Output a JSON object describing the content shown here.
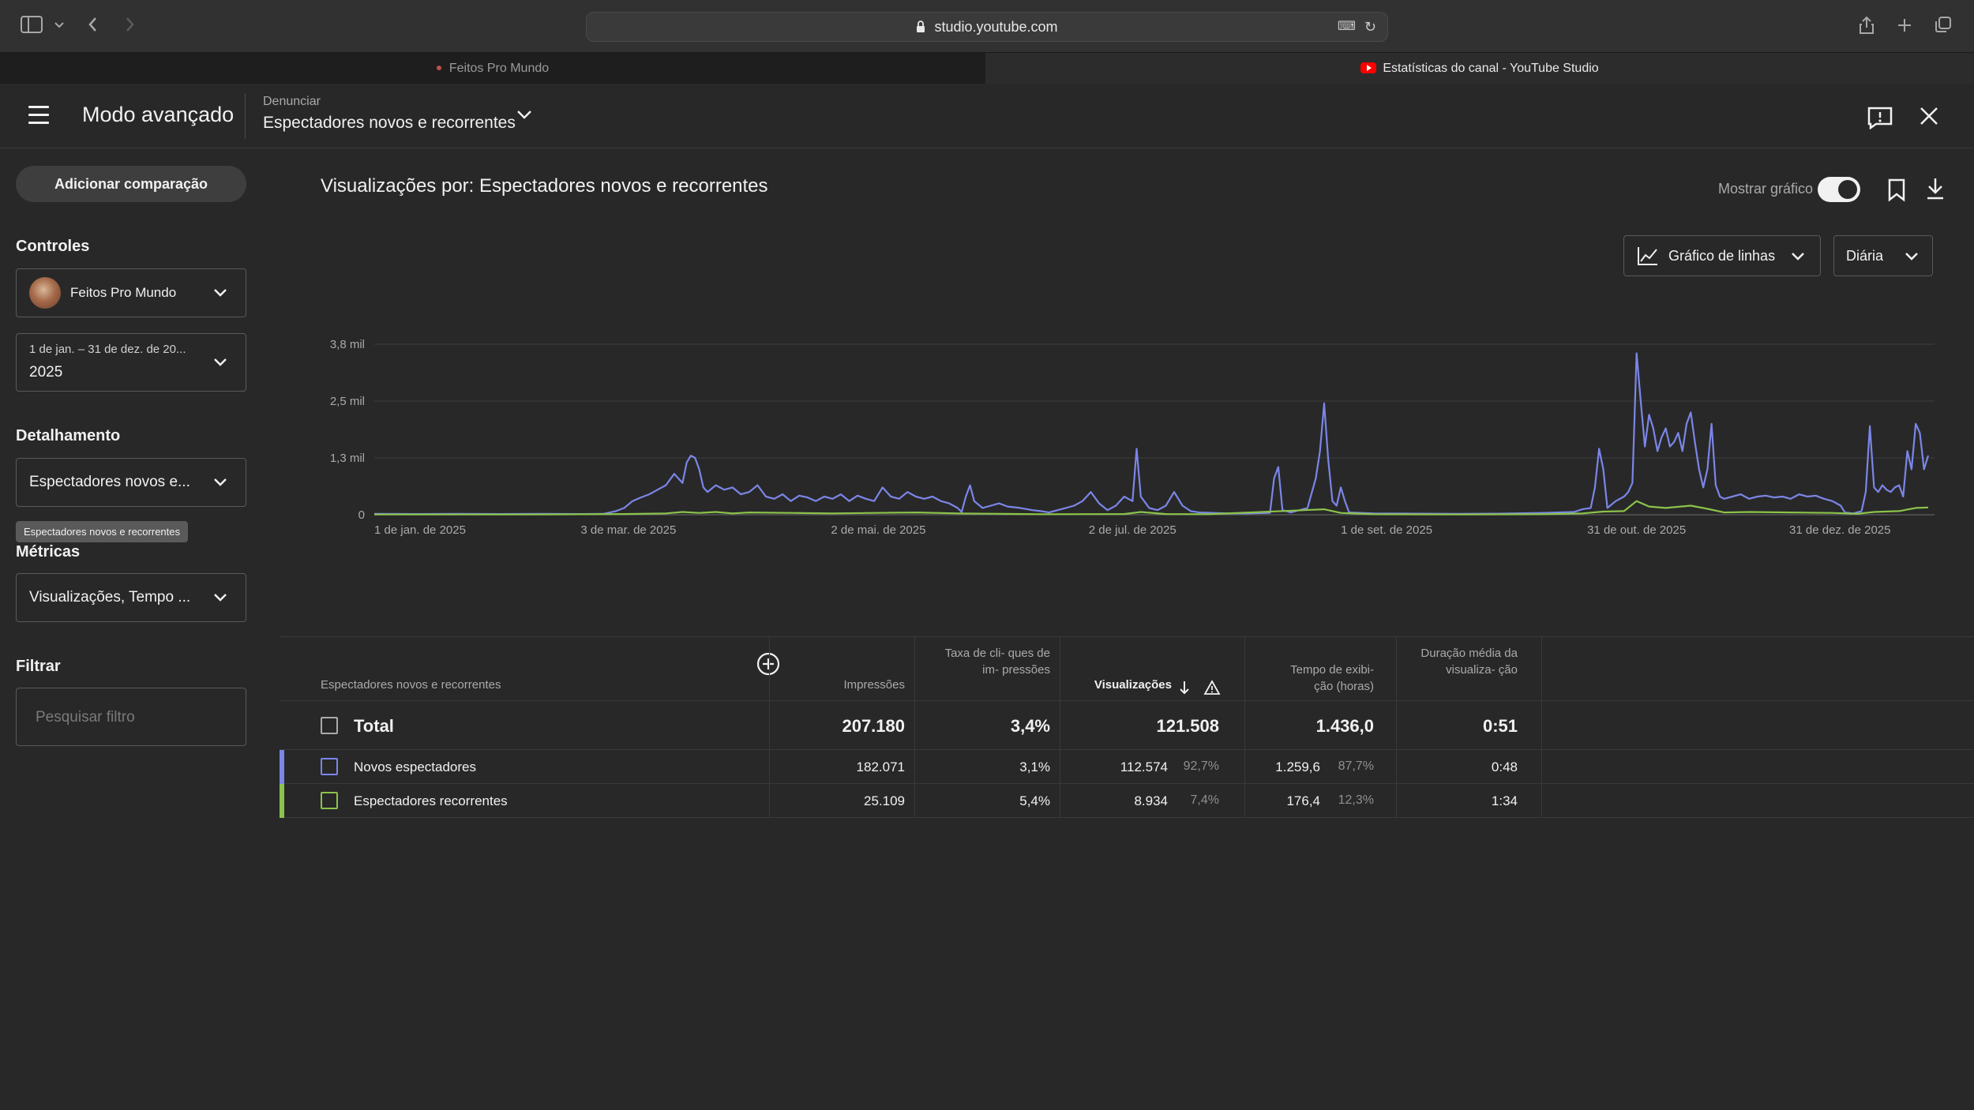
{
  "browser": {
    "url": "studio.youtube.com",
    "tabs": [
      {
        "label": "Feitos Pro Mundo"
      },
      {
        "label": "Estatísticas do canal - YouTube Studio"
      }
    ]
  },
  "header": {
    "title": "Modo avançado",
    "report_label": "Denunciar",
    "report_value": "Espectadores novos e recorrentes"
  },
  "sidebar": {
    "add_comparison": "Adicionar comparação",
    "controls_heading": "Controles",
    "channel_name": "Feitos Pro Mundo",
    "date_range_label": "1 de jan. – 31 de dez. de 20...",
    "date_range_value": "2025",
    "breakdown_heading": "Detalhamento",
    "breakdown_value": "Espectadores novos e...",
    "breakdown_tooltip": "Espectadores novos e recorrentes",
    "metrics_heading": "Métricas",
    "metrics_value": "Visualizações, Tempo ...",
    "filter_heading": "Filtrar",
    "filter_placeholder": "Pesquisar filtro"
  },
  "main": {
    "title": "Visualizações por: Espectadores novos e recorrentes",
    "show_chart_label": "Mostrar gráfico",
    "chart_type": "Gráfico de linhas",
    "granularity": "Diária"
  },
  "chart_data": {
    "type": "line",
    "y_tick_labels": [
      "0",
      "1,3 mil",
      "2,5 mil",
      "3,8 mil"
    ],
    "y_ticks": [
      0,
      1250,
      2500,
      3750
    ],
    "ylim": [
      0,
      3750
    ],
    "x_tick_labels": [
      "1 de jan. de 2025",
      "3 de mar. de 2025",
      "2 de mai. de 2025",
      "2 de jul. de 2025",
      "1 de set. de 2025",
      "31 de out. de 2025",
      "31 de dez. de 2025"
    ],
    "x_tick_days": [
      0,
      61,
      121,
      182,
      243,
      303,
      364
    ],
    "grid": true,
    "series": [
      {
        "name": "Novos espectadores",
        "color": "#7b86e8",
        "points": [
          [
            0,
            20
          ],
          [
            10,
            15
          ],
          [
            20,
            20
          ],
          [
            30,
            15
          ],
          [
            40,
            20
          ],
          [
            50,
            15
          ],
          [
            55,
            20
          ],
          [
            58,
            80
          ],
          [
            60,
            150
          ],
          [
            62,
            300
          ],
          [
            64,
            380
          ],
          [
            66,
            450
          ],
          [
            68,
            550
          ],
          [
            70,
            650
          ],
          [
            72,
            900
          ],
          [
            74,
            700
          ],
          [
            75,
            1150
          ],
          [
            76,
            1300
          ],
          [
            77,
            1250
          ],
          [
            78,
            1000
          ],
          [
            79,
            600
          ],
          [
            80,
            500
          ],
          [
            82,
            650
          ],
          [
            84,
            550
          ],
          [
            86,
            600
          ],
          [
            88,
            450
          ],
          [
            90,
            500
          ],
          [
            92,
            650
          ],
          [
            94,
            400
          ],
          [
            96,
            350
          ],
          [
            98,
            450
          ],
          [
            100,
            300
          ],
          [
            102,
            420
          ],
          [
            104,
            380
          ],
          [
            106,
            300
          ],
          [
            108,
            400
          ],
          [
            110,
            350
          ],
          [
            112,
            450
          ],
          [
            114,
            300
          ],
          [
            116,
            420
          ],
          [
            118,
            350
          ],
          [
            120,
            300
          ],
          [
            122,
            600
          ],
          [
            124,
            400
          ],
          [
            126,
            350
          ],
          [
            128,
            500
          ],
          [
            130,
            400
          ],
          [
            132,
            350
          ],
          [
            134,
            400
          ],
          [
            136,
            300
          ],
          [
            138,
            250
          ],
          [
            140,
            150
          ],
          [
            141,
            60
          ],
          [
            142,
            400
          ],
          [
            143,
            650
          ],
          [
            144,
            300
          ],
          [
            146,
            150
          ],
          [
            148,
            200
          ],
          [
            150,
            250
          ],
          [
            152,
            180
          ],
          [
            155,
            150
          ],
          [
            158,
            100
          ],
          [
            160,
            80
          ],
          [
            162,
            50
          ],
          [
            164,
            100
          ],
          [
            166,
            150
          ],
          [
            168,
            200
          ],
          [
            170,
            300
          ],
          [
            172,
            500
          ],
          [
            174,
            250
          ],
          [
            176,
            100
          ],
          [
            178,
            200
          ],
          [
            180,
            400
          ],
          [
            182,
            300
          ],
          [
            183,
            1450
          ],
          [
            184,
            400
          ],
          [
            186,
            150
          ],
          [
            188,
            100
          ],
          [
            190,
            200
          ],
          [
            192,
            500
          ],
          [
            194,
            200
          ],
          [
            196,
            80
          ],
          [
            198,
            50
          ],
          [
            205,
            30
          ],
          [
            210,
            30
          ],
          [
            215,
            40
          ],
          [
            216,
            800
          ],
          [
            217,
            1050
          ],
          [
            218,
            100
          ],
          [
            220,
            50
          ],
          [
            224,
            150
          ],
          [
            226,
            800
          ],
          [
            227,
            1400
          ],
          [
            228,
            2450
          ],
          [
            229,
            1200
          ],
          [
            230,
            300
          ],
          [
            231,
            200
          ],
          [
            232,
            600
          ],
          [
            233,
            300
          ],
          [
            234,
            50
          ],
          [
            240,
            30
          ],
          [
            250,
            25
          ],
          [
            260,
            20
          ],
          [
            270,
            25
          ],
          [
            280,
            40
          ],
          [
            288,
            60
          ],
          [
            290,
            120
          ],
          [
            292,
            150
          ],
          [
            293,
            600
          ],
          [
            294,
            1450
          ],
          [
            295,
            1000
          ],
          [
            296,
            150
          ],
          [
            298,
            300
          ],
          [
            300,
            400
          ],
          [
            301,
            500
          ],
          [
            302,
            700
          ],
          [
            303,
            3550
          ],
          [
            304,
            2500
          ],
          [
            305,
            1500
          ],
          [
            306,
            2200
          ],
          [
            307,
            1900
          ],
          [
            308,
            1400
          ],
          [
            309,
            1700
          ],
          [
            310,
            1900
          ],
          [
            311,
            1500
          ],
          [
            312,
            1600
          ],
          [
            313,
            1800
          ],
          [
            314,
            1400
          ],
          [
            315,
            2000
          ],
          [
            316,
            2250
          ],
          [
            317,
            1600
          ],
          [
            318,
            1000
          ],
          [
            319,
            600
          ],
          [
            320,
            1000
          ],
          [
            321,
            2000
          ],
          [
            322,
            650
          ],
          [
            323,
            400
          ],
          [
            324,
            350
          ],
          [
            326,
            400
          ],
          [
            328,
            450
          ],
          [
            330,
            350
          ],
          [
            332,
            400
          ],
          [
            334,
            420
          ],
          [
            336,
            380
          ],
          [
            338,
            400
          ],
          [
            340,
            350
          ],
          [
            342,
            450
          ],
          [
            344,
            400
          ],
          [
            346,
            420
          ],
          [
            348,
            350
          ],
          [
            350,
            300
          ],
          [
            352,
            200
          ],
          [
            353,
            50
          ],
          [
            355,
            30
          ],
          [
            357,
            80
          ],
          [
            358,
            500
          ],
          [
            359,
            1950
          ],
          [
            360,
            600
          ],
          [
            361,
            500
          ],
          [
            362,
            650
          ],
          [
            363,
            550
          ],
          [
            364,
            500
          ],
          [
            365,
            600
          ],
          [
            366,
            650
          ],
          [
            367,
            400
          ],
          [
            368,
            1400
          ],
          [
            369,
            1000
          ],
          [
            370,
            2000
          ],
          [
            371,
            1800
          ],
          [
            372,
            1000
          ],
          [
            373,
            1300
          ]
        ]
      },
      {
        "name": "Espectadores recorrentes",
        "color": "#8bc34a",
        "points": [
          [
            0,
            5
          ],
          [
            40,
            5
          ],
          [
            60,
            15
          ],
          [
            70,
            30
          ],
          [
            74,
            60
          ],
          [
            78,
            40
          ],
          [
            82,
            60
          ],
          [
            86,
            30
          ],
          [
            90,
            50
          ],
          [
            100,
            40
          ],
          [
            110,
            30
          ],
          [
            120,
            40
          ],
          [
            130,
            50
          ],
          [
            140,
            30
          ],
          [
            150,
            20
          ],
          [
            160,
            10
          ],
          [
            180,
            15
          ],
          [
            184,
            60
          ],
          [
            190,
            15
          ],
          [
            200,
            10
          ],
          [
            228,
            120
          ],
          [
            232,
            40
          ],
          [
            240,
            10
          ],
          [
            260,
            5
          ],
          [
            280,
            10
          ],
          [
            290,
            30
          ],
          [
            295,
            70
          ],
          [
            300,
            80
          ],
          [
            303,
            300
          ],
          [
            306,
            180
          ],
          [
            310,
            150
          ],
          [
            316,
            200
          ],
          [
            320,
            130
          ],
          [
            324,
            50
          ],
          [
            330,
            60
          ],
          [
            340,
            50
          ],
          [
            350,
            40
          ],
          [
            356,
            20
          ],
          [
            360,
            60
          ],
          [
            366,
            80
          ],
          [
            370,
            150
          ],
          [
            373,
            160
          ]
        ]
      }
    ]
  },
  "table": {
    "dimension_header": "Espectadores novos e recorrentes",
    "columns": [
      {
        "key": "impressions",
        "label": "Impressões"
      },
      {
        "key": "ctr",
        "label": "Taxa de cli- ques de im- pressões"
      },
      {
        "key": "views",
        "label": "Visualizações"
      },
      {
        "key": "watch_time",
        "label": "Tempo de exibi- ção (horas)"
      },
      {
        "key": "avg_duration",
        "label": "Duração média da visualiza- ção"
      }
    ],
    "total": {
      "label": "Total",
      "impressions": "207.180",
      "ctr": "3,4%",
      "views": "121.508",
      "watch_time": "1.436,0",
      "avg_duration": "0:51"
    },
    "rows": [
      {
        "label": "Novos espectadores",
        "color": "#7b86e8",
        "impressions": "182.071",
        "ctr": "3,1%",
        "views": "112.574",
        "views_pct": "92,7%",
        "watch_time": "1.259,6",
        "watch_time_pct": "87,7%",
        "avg_duration": "0:48"
      },
      {
        "label": "Espectadores recorrentes",
        "color": "#8bc34a",
        "impressions": "25.109",
        "ctr": "5,4%",
        "views": "8.934",
        "views_pct": "7,4%",
        "watch_time": "176,4",
        "watch_time_pct": "12,3%",
        "avg_duration": "1:34"
      }
    ]
  }
}
